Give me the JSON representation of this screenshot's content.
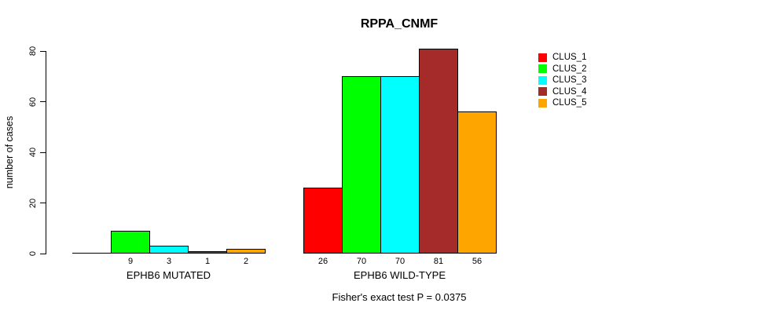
{
  "title": "RPPA_CNMF",
  "ylabel": "number of cases",
  "footnote": "Fisher's exact test P = 0.0375",
  "chart_data": {
    "type": "bar",
    "title": "RPPA_CNMF",
    "xlabel": "",
    "ylabel": "number of cases",
    "ylim": [
      0,
      80
    ],
    "yticks": [
      0,
      20,
      40,
      60,
      80
    ],
    "grid": false,
    "legend_position": "right",
    "bar_value_labels_shown": true,
    "zero_bars_unlabeled": true,
    "categories": [
      "EPHB6 MUTATED",
      "EPHB6 WILD-TYPE"
    ],
    "series": [
      {
        "name": "CLUS_1",
        "color": "#FF0000",
        "values": [
          0,
          26
        ]
      },
      {
        "name": "CLUS_2",
        "color": "#00FF00",
        "values": [
          9,
          70
        ]
      },
      {
        "name": "CLUS_3",
        "color": "#00FFFF",
        "values": [
          3,
          70
        ]
      },
      {
        "name": "CLUS_4",
        "color": "#A52A2A",
        "values": [
          1,
          81
        ]
      },
      {
        "name": "CLUS_5",
        "color": "#FFA500",
        "values": [
          2,
          56
        ]
      }
    ],
    "annotation": "Fisher's exact test P = 0.0375"
  }
}
